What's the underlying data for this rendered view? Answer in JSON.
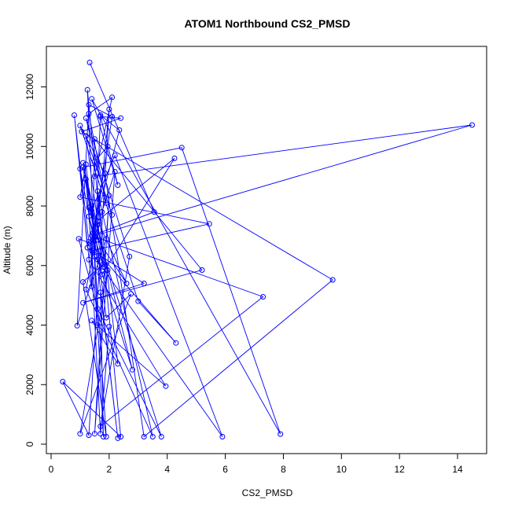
{
  "chart_data": {
    "type": "line",
    "title": "ATOM1 Northbound CS2_PMSD",
    "xlabel": "CS2_PMSD",
    "ylabel": "Altitude (m)",
    "xlim": [
      0,
      15
    ],
    "ylim": [
      0,
      13000
    ],
    "x_ticks": [
      0,
      2,
      4,
      6,
      8,
      10,
      12,
      14
    ],
    "y_ticks": [
      0,
      2000,
      4000,
      6000,
      8000,
      10000,
      12000
    ],
    "grid": false,
    "legend": "none",
    "series_color": "#0000FF",
    "marker": "open-circle",
    "series": [
      {
        "points": [
          [
            1.33,
            12820
          ],
          [
            3.55,
            7800
          ],
          [
            1.4,
            7000
          ],
          [
            7.3,
            4950
          ],
          [
            1.7,
            600
          ],
          [
            2.7,
            6300
          ],
          [
            1.2,
            10950
          ],
          [
            1.9,
            8100
          ],
          [
            1.3,
            11100
          ],
          [
            2.1,
            11650
          ],
          [
            1.5,
            9000
          ],
          [
            14.5,
            10720
          ],
          [
            1.5,
            7000
          ],
          [
            1.1,
            9300
          ],
          [
            4.5,
            9960
          ],
          [
            7.9,
            340
          ],
          [
            1.4,
            11600
          ],
          [
            2.3,
            8700
          ],
          [
            1.7,
            11000
          ],
          [
            2.4,
            10950
          ],
          [
            1.05,
            10500
          ],
          [
            9.7,
            5520
          ],
          [
            3.2,
            250
          ],
          [
            1.85,
            9100
          ],
          [
            1.0,
            10700
          ],
          [
            3.0,
            4800
          ],
          [
            4.3,
            3400
          ],
          [
            1.3,
            6800
          ],
          [
            0.8,
            11050
          ],
          [
            1.4,
            5300
          ],
          [
            1.5,
            10250
          ],
          [
            5.2,
            5850
          ],
          [
            1.1,
            4750
          ],
          [
            3.2,
            5400
          ],
          [
            1.25,
            6600
          ],
          [
            1.0,
            9250
          ],
          [
            1.6,
            6200
          ],
          [
            2.8,
            2500
          ],
          [
            1.4,
            8000
          ],
          [
            1.8,
            250
          ],
          [
            1.7,
            5100
          ],
          [
            2.3,
            200
          ],
          [
            1.2,
            9400
          ],
          [
            1.0,
            8300
          ],
          [
            5.45,
            7400
          ],
          [
            1.4,
            6500
          ],
          [
            2.1,
            11000
          ],
          [
            1.3,
            11400
          ],
          [
            0.9,
            3980
          ],
          [
            1.9,
            6900
          ],
          [
            2.0,
            8350
          ],
          [
            1.5,
            350
          ],
          [
            2.2,
            9150
          ],
          [
            1.75,
            7800
          ],
          [
            1.2,
            5200
          ],
          [
            3.5,
            250
          ],
          [
            1.6,
            8500
          ],
          [
            2.3,
            2700
          ],
          [
            1.4,
            4150
          ],
          [
            3.95,
            1950
          ],
          [
            1.3,
            6200
          ],
          [
            1.95,
            10000
          ],
          [
            1.5,
            9500
          ],
          [
            2.1,
            7700
          ],
          [
            1.2,
            10350
          ],
          [
            1.8,
            6050
          ],
          [
            1.1,
            5450
          ],
          [
            1.9,
            250
          ],
          [
            1.45,
            7100
          ],
          [
            2.6,
            5400
          ],
          [
            1.6,
            7500
          ],
          [
            4.25,
            9600
          ],
          [
            1.75,
            5700
          ],
          [
            1.2,
            8900
          ],
          [
            1.6,
            4000
          ],
          [
            1.25,
            11900
          ],
          [
            2.4,
            250
          ],
          [
            0.4,
            2100
          ],
          [
            1.3,
            300
          ],
          [
            2.0,
            11250
          ],
          [
            1.55,
            6850
          ],
          [
            1.9,
            4250
          ],
          [
            2.75,
            5050
          ],
          [
            1.0,
            350
          ],
          [
            1.95,
            5850
          ],
          [
            1.1,
            9450
          ],
          [
            1.8,
            5950
          ],
          [
            1.3,
            7650
          ],
          [
            2.2,
            9700
          ],
          [
            5.9,
            250
          ],
          [
            1.5,
            6300
          ],
          [
            1.7,
            11050
          ],
          [
            2.35,
            10550
          ],
          [
            1.35,
            6750
          ],
          [
            0.95,
            6900
          ],
          [
            1.6,
            4550
          ],
          [
            3.8,
            250
          ],
          [
            1.3,
            7950
          ],
          [
            1.7,
            350
          ],
          [
            2.0,
            3950
          ]
        ]
      }
    ]
  }
}
